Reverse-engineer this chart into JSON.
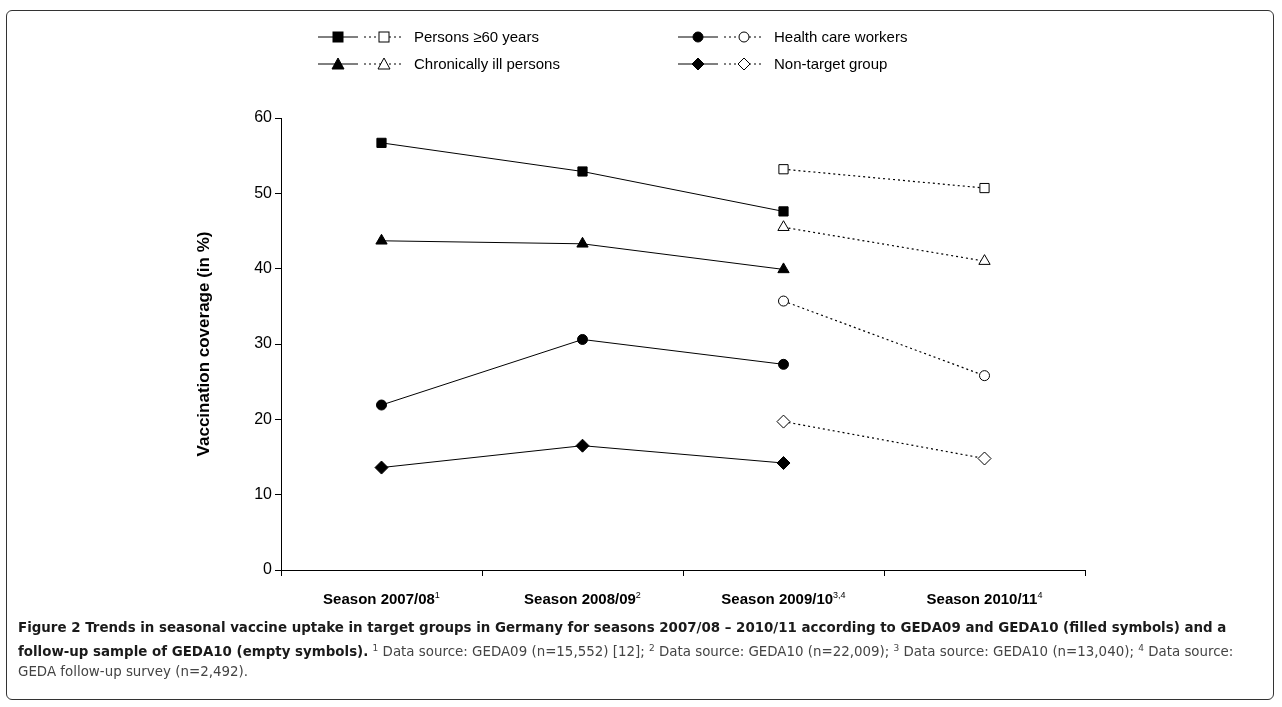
{
  "chart_data": {
    "type": "line",
    "title": "Figure 2 Trends in seasonal vaccine uptake in target groups in Germany for seasons 2007/08 – 2010/11 according to GEDA09 and GEDA10 (filled symbols) and a follow-up sample of GEDA10 (empty symbols).",
    "annotations": [
      "$^{1}$ Data source: GEDA09 (n=15,552) [12]; $^{2}$ Data source: GEDA10 (n=22,009); $^{3}$ Data source: GEDA10 (n=13,040); $^{4}$ Data source: GEDA follow-up survey (n=2,492)."
    ],
    "categories": [
      "Season 2007/08$^{1}$",
      "Season 2008/09$^{2}$",
      "Season 2009/10$^{3,4}$",
      "Season 2010/11$^{4}$"
    ],
    "ylabel": "Vaccination coverage (in %)",
    "ylim": [
      0,
      60
    ],
    "yticks": [
      0,
      10,
      20,
      30,
      40,
      50,
      60
    ],
    "grid": false,
    "legend": "top",
    "series": [
      {
        "color": "#000000",
        "marker": "square",
        "line_style": "solid",
        "values": [
          56.7,
          52.9,
          47.6,
          null
        ]
      },
      {
        "name": "Persons ≥60 years",
        "color": "#000000",
        "marker": "square",
        "line_style": "dotted",
        "values": [
          null,
          null,
          53.2,
          50.7
        ]
      },
      {
        "color": "#000000",
        "marker": "circle",
        "line_style": "solid",
        "values": [
          21.9,
          30.6,
          27.3,
          null
        ]
      },
      {
        "name": "Health care workers",
        "color": "#000000",
        "marker": "circle",
        "line_style": "dotted",
        "values": [
          null,
          null,
          35.7,
          25.8
        ]
      },
      {
        "color": "#000000",
        "marker": "triangle",
        "line_style": "solid",
        "values": [
          43.7,
          43.3,
          39.9,
          null
        ]
      },
      {
        "name": "Chronically ill persons",
        "color": "#000000",
        "marker": "triangle",
        "line_style": "dotted",
        "values": [
          null,
          null,
          45.5,
          41.0
        ]
      },
      {
        "color": "#000000",
        "marker": "diamond",
        "line_style": "solid",
        "values": [
          13.6,
          16.5,
          14.2,
          null
        ]
      },
      {
        "name": "Non-target group",
        "color": "#000000",
        "marker": "diamond",
        "line_style": "dotted",
        "values": [
          null,
          null,
          19.7,
          14.8
        ]
      }
    ]
  }
}
